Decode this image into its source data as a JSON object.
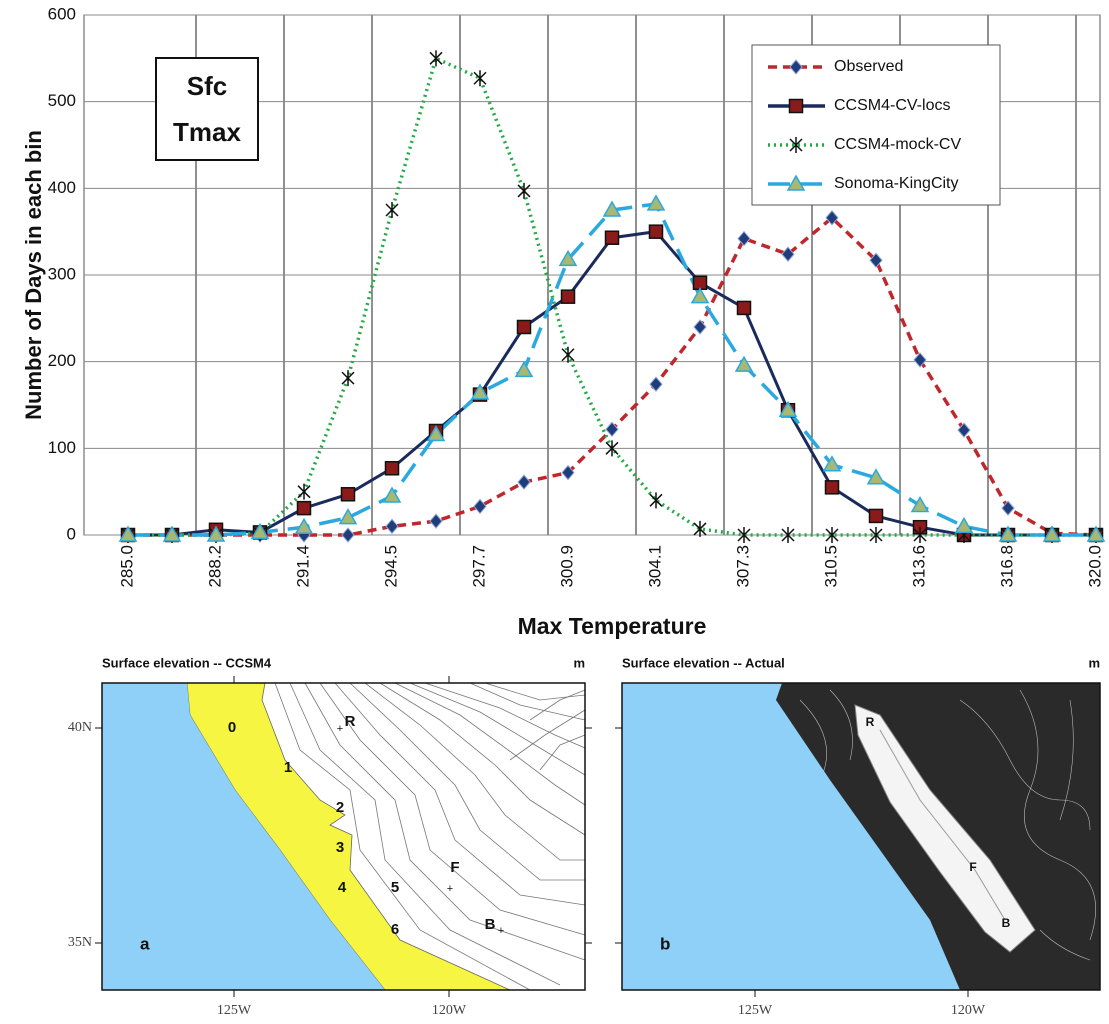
{
  "chart_data": {
    "type": "line",
    "annotation": [
      "Sfc",
      "Tmax"
    ],
    "x_label": "Max Temperature",
    "y_label": "Number of Days in each bin",
    "categories": [
      "285.0",
      null,
      "288.2",
      null,
      "291.4",
      null,
      "294.5",
      null,
      "297.7",
      null,
      "300.9",
      null,
      "304.1",
      null,
      "307.3",
      null,
      "310.5",
      null,
      "313.6",
      null,
      "316.8",
      null,
      "320.0"
    ],
    "series": [
      {
        "name": "Observed",
        "color": "#c0272d",
        "marker": "diamond",
        "marker_color": "#1f3d7a",
        "line_style": "dashed",
        "values": [
          0,
          0,
          0,
          0,
          0,
          0,
          10,
          16,
          33,
          61,
          72,
          122,
          174,
          240,
          342,
          324,
          366,
          317,
          202,
          121,
          31,
          2,
          0
        ]
      },
      {
        "name": "CCSM4-CV-locs",
        "color": "#1a2a5a",
        "marker": "square",
        "marker_color": "#8b1a1a",
        "line_style": "solid",
        "values": [
          0,
          0,
          6,
          3,
          31,
          47,
          77,
          120,
          162,
          240,
          275,
          343,
          350,
          291,
          262,
          144,
          55,
          22,
          9,
          0,
          0,
          0,
          0
        ]
      },
      {
        "name": "CCSM4-mock-CV",
        "color": "#22aa44",
        "marker": "asterisk",
        "marker_color": "#111111",
        "line_style": "dotted",
        "values": [
          0,
          0,
          0,
          2,
          50,
          181,
          375,
          550,
          527,
          397,
          208,
          100,
          40,
          7,
          0,
          0,
          0,
          0,
          0,
          0,
          0,
          0,
          0
        ]
      },
      {
        "name": "Sonoma-KingCity",
        "color": "#29a9e0",
        "marker": "triangle",
        "marker_color": "#a8b870",
        "line_style": "longdash",
        "values": [
          0,
          0,
          0,
          3,
          9,
          20,
          45,
          116,
          164,
          190,
          318,
          375,
          382,
          275,
          196,
          144,
          81,
          66,
          34,
          10,
          0,
          0,
          0
        ]
      }
    ],
    "ylim": [
      0,
      600
    ],
    "yticks": [
      0,
      100,
      200,
      300,
      400,
      500,
      600
    ],
    "grid": true,
    "legend": "upper right"
  },
  "maps": [
    {
      "title": "Surface elevation -- CCSM4",
      "unit": "m",
      "panel": "a",
      "lat_labels": [
        "40N",
        "35N"
      ],
      "lon_labels": [
        "125W",
        "120W"
      ],
      "points": [
        "0",
        "1",
        "2",
        "3",
        "4",
        "5",
        "6",
        "R",
        "F",
        "B"
      ]
    },
    {
      "title": "Surface elevation -- Actual",
      "unit": "m",
      "panel": "b",
      "lon_labels": [
        "125W",
        "120W"
      ],
      "points": [
        "R",
        "F",
        "B"
      ]
    }
  ]
}
